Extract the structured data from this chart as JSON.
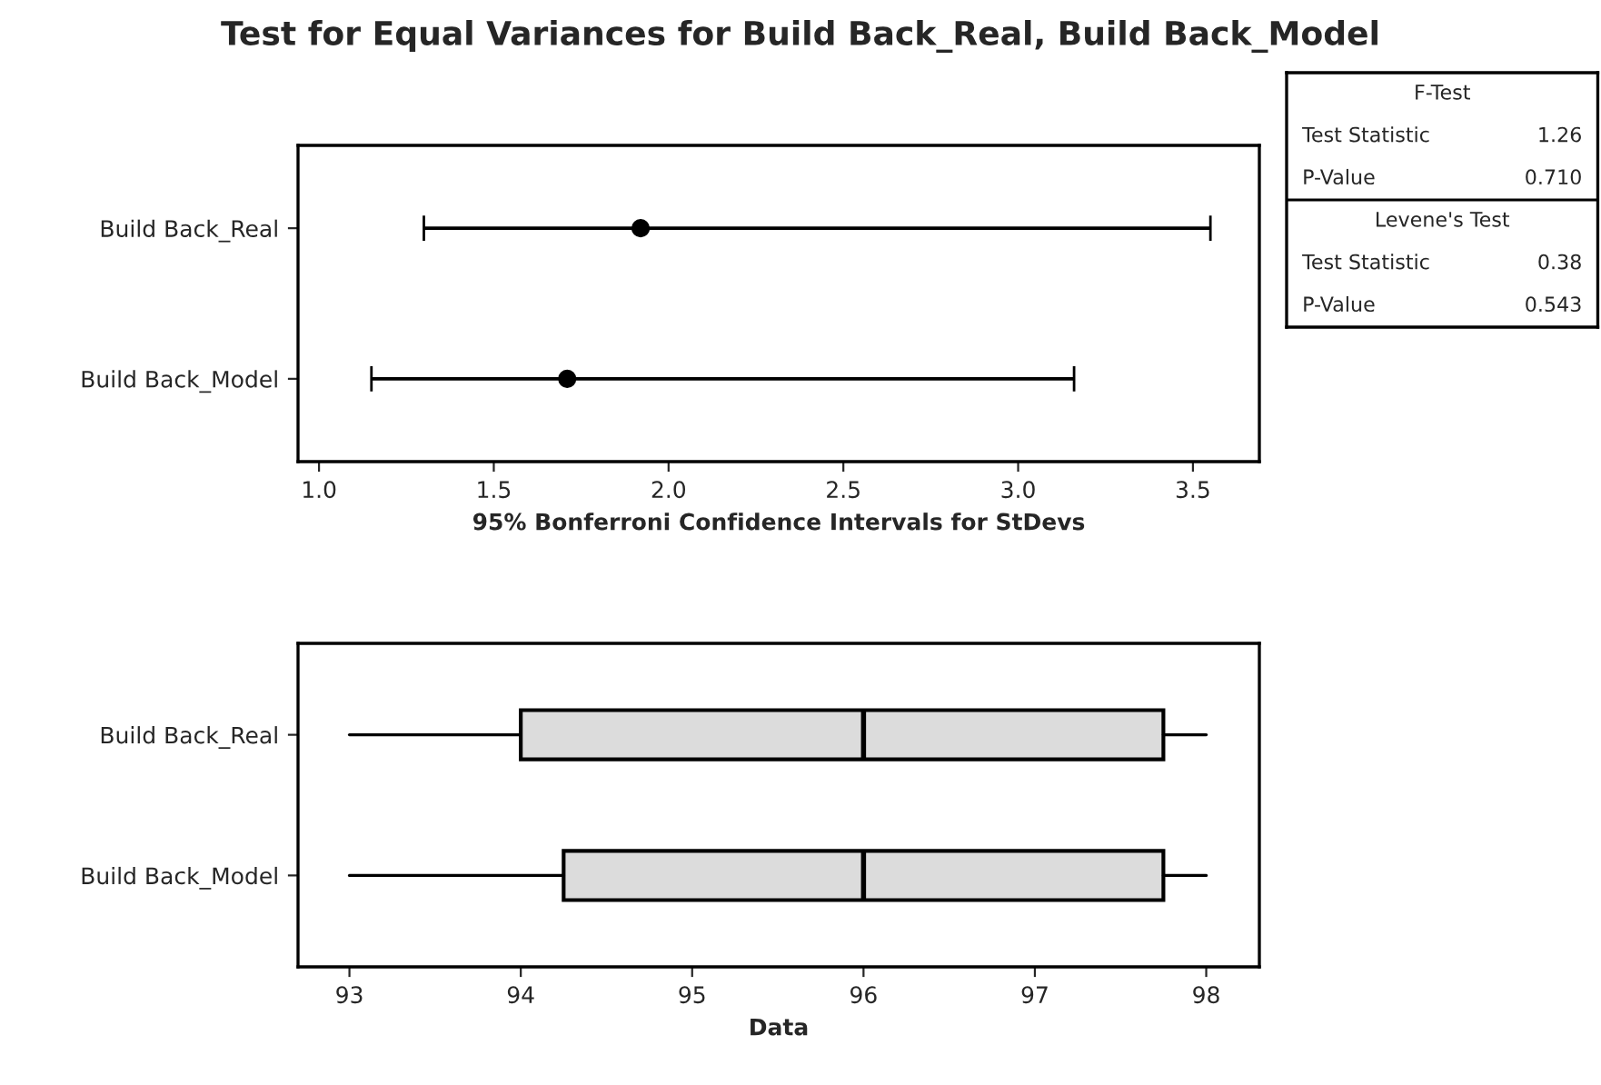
{
  "chart_data": [
    {
      "type": "scatter",
      "orientation": "horizontal",
      "title": "Test for Equal Variances for Build Back_Real, Build Back_Model",
      "xlabel": "95% Bonferroni Confidence Intervals for StDevs",
      "categories": [
        "Build Back_Real",
        "Build Back_Model"
      ],
      "values": [
        1.92,
        1.71
      ],
      "errors": [
        [
          1.3,
          3.55
        ],
        [
          1.15,
          3.16
        ]
      ],
      "color": "#000000",
      "marker": "circle",
      "xlim": [
        0.94,
        3.69
      ],
      "xticks": [
        {
          "value": 1.0,
          "label": "1.0"
        },
        {
          "value": 1.5,
          "label": "1.5"
        },
        {
          "value": 2.0,
          "label": "2.0"
        },
        {
          "value": 2.5,
          "label": "2.5"
        },
        {
          "value": 3.0,
          "label": "3.0"
        },
        {
          "value": 3.5,
          "label": "3.5"
        }
      ],
      "grid": false
    },
    {
      "type": "box",
      "orientation": "horizontal",
      "xlabel": "Data",
      "categories": [
        "Build Back_Real",
        "Build Back_Model"
      ],
      "color": "#dcdcdc",
      "boxes": [
        {
          "low": 93,
          "q1": 94,
          "median": 96,
          "q3": 97.75,
          "high": 98
        },
        {
          "low": 93,
          "q1": 94.25,
          "median": 96,
          "q3": 97.75,
          "high": 98
        }
      ],
      "xlim": [
        92.7,
        98.31
      ],
      "xticks": [
        93,
        94,
        95,
        96,
        97,
        98
      ],
      "grid": false
    },
    {
      "type": "other",
      "annotations": [
        "F-Test",
        "Test Statistic",
        "1.26",
        "P-Value",
        "0.710",
        "Levene's Test",
        "Test Statistic",
        "0.38",
        "P-Value",
        "0.543"
      ]
    }
  ]
}
